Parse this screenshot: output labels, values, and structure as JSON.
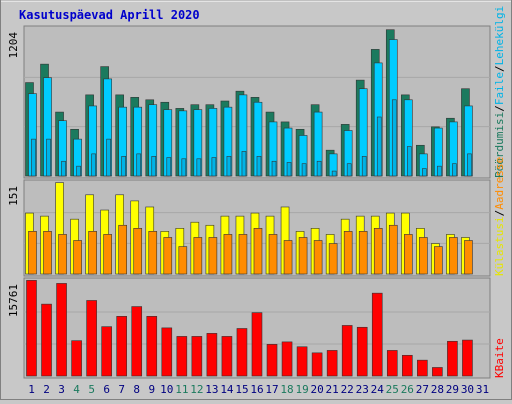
{
  "title": "Kasutuspäevad Aprill 2020",
  "colors": {
    "background": "#c8c8c8",
    "plot_background": "#bdbdbd",
    "title": "#0000cc",
    "hits": "#1b7a5e",
    "files": "#00ccff",
    "pages": "#00b3e6",
    "visits": "#ffff00",
    "sites": "#ff8c00",
    "kbytes": "#ff0000",
    "weekend_day": "#1b7a5e",
    "weekday": "#000080"
  },
  "chart_data": [
    {
      "type": "bar",
      "panel": "top",
      "ymax_label": "1204",
      "ylim": [
        0,
        1204
      ],
      "categories": [
        "1",
        "2",
        "3",
        "4",
        "5",
        "6",
        "7",
        "8",
        "9",
        "10",
        "11",
        "12",
        "13",
        "14",
        "15",
        "16",
        "17",
        "18",
        "19",
        "20",
        "21",
        "22",
        "23",
        "24",
        "25",
        "26",
        "27",
        "28",
        "29",
        "30",
        "31"
      ],
      "weekend_days": [
        "4",
        "5",
        "11",
        "12",
        "18",
        "19",
        "25",
        "26"
      ],
      "series": [
        {
          "name": "Pöördumisi",
          "values": [
            760,
            910,
            520,
            380,
            660,
            890,
            660,
            640,
            620,
            600,
            550,
            580,
            580,
            610,
            690,
            640,
            520,
            440,
            380,
            580,
            210,
            420,
            780,
            1030,
            1190,
            660,
            250,
            400,
            470,
            710,
            0
          ]
        },
        {
          "name": "Faile",
          "values": [
            670,
            800,
            450,
            300,
            570,
            790,
            560,
            560,
            580,
            540,
            530,
            540,
            550,
            560,
            660,
            600,
            440,
            390,
            330,
            520,
            180,
            370,
            710,
            920,
            1110,
            620,
            180,
            390,
            440,
            570,
            0
          ]
        },
        {
          "name": "Lehekülgi",
          "values": [
            300,
            300,
            120,
            80,
            180,
            300,
            160,
            180,
            160,
            150,
            140,
            140,
            150,
            160,
            200,
            160,
            120,
            110,
            100,
            120,
            40,
            100,
            160,
            480,
            620,
            240,
            60,
            80,
            100,
            180,
            0
          ]
        }
      ]
    },
    {
      "type": "bar",
      "panel": "middle",
      "ymax_label": "151",
      "ylim": [
        0,
        151
      ],
      "series": [
        {
          "name": "Külastusi",
          "values": [
            100,
            95,
            150,
            90,
            130,
            105,
            130,
            120,
            110,
            70,
            75,
            85,
            80,
            95,
            95,
            100,
            95,
            110,
            70,
            75,
            65,
            90,
            95,
            95,
            100,
            100,
            75,
            50,
            65,
            60,
            0
          ]
        },
        {
          "name": "Aadresse",
          "values": [
            70,
            70,
            65,
            55,
            70,
            65,
            80,
            75,
            70,
            60,
            45,
            60,
            60,
            65,
            65,
            75,
            65,
            55,
            60,
            55,
            50,
            70,
            70,
            75,
            80,
            65,
            60,
            45,
            60,
            55,
            0
          ]
        }
      ]
    },
    {
      "type": "bar",
      "panel": "bottom",
      "ymax_label": "15761",
      "ylim": [
        0,
        15761
      ],
      "series": [
        {
          "name": "KBaite",
          "values": [
            15700,
            11800,
            15200,
            5800,
            12400,
            8100,
            9800,
            11400,
            9800,
            7900,
            6500,
            6500,
            7000,
            6500,
            7800,
            10400,
            5200,
            5600,
            4800,
            3800,
            4200,
            8300,
            8000,
            13600,
            4200,
            3400,
            2600,
            1400,
            5700,
            5900,
            0
          ]
        }
      ]
    }
  ],
  "legend": {
    "top": [
      {
        "text": "Pöördumisi",
        "color": "#1b7a5e"
      },
      {
        "text": "Faile",
        "color": "#00b3e6"
      },
      {
        "text": "Lehekülgi",
        "color": "#00b3e6"
      }
    ],
    "middle": [
      {
        "text": "Külastusi",
        "color": "#e6e600"
      },
      {
        "text": "Aadresse",
        "color": "#ff8c00"
      }
    ],
    "bottom": [
      {
        "text": "KBaite",
        "color": "#ff0000"
      }
    ],
    "separator": "/"
  }
}
